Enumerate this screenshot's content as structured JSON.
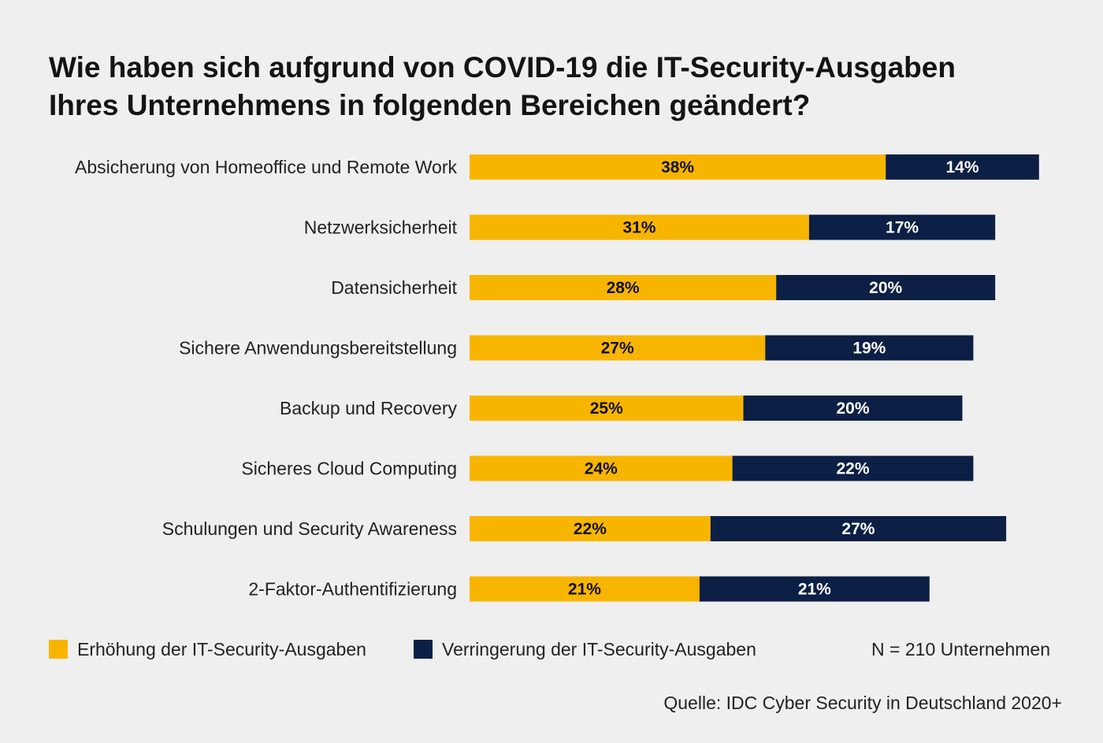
{
  "title_line1": "Wie haben sich aufgrund von COVID-19 die IT-Security-Ausgaben",
  "title_line2": "Ihres Unternehmens in folgenden Bereichen geändert?",
  "colors": {
    "increase": "#f8b500",
    "decrease": "#0c1f45",
    "background": "#efefef"
  },
  "legend": {
    "increase_label": "Erhöhung der IT-Security-Ausgaben",
    "decrease_label": "Verringerung der IT-Security-Ausgaben"
  },
  "sample_note": "N = 210 Unternehmen",
  "source": "Quelle: IDC Cyber Security in Deutschland 2020+",
  "chart_data": {
    "type": "bar",
    "orientation": "horizontal",
    "stacked": true,
    "categories": [
      "Absicherung von Homeoffice und Remote Work",
      "Netzwerksicherheit",
      "Datensicherheit",
      "Sichere Anwendungsbereitstellung",
      "Backup und Recovery",
      "Sicheres Cloud Computing",
      "Schulungen und Security Awareness",
      "2-Faktor-Authentifizierung"
    ],
    "series": [
      {
        "name": "Erhöhung der IT-Security-Ausgaben",
        "color": "#f8b500",
        "values": [
          38,
          31,
          28,
          27,
          25,
          24,
          22,
          21
        ],
        "labels": [
          "38%",
          "31%",
          "28%",
          "27%",
          "25%",
          "24%",
          "22%",
          "21%"
        ]
      },
      {
        "name": "Verringerung der IT-Security-Ausgaben",
        "color": "#0c1f45",
        "values": [
          14,
          17,
          20,
          19,
          20,
          22,
          27,
          21
        ],
        "labels": [
          "14%",
          "17%",
          "20%",
          "19%",
          "20%",
          "22%",
          "27%",
          "21%"
        ]
      }
    ],
    "unit": "%",
    "xlim": [
      0,
      52
    ],
    "grid": false,
    "legend_position": "bottom"
  }
}
